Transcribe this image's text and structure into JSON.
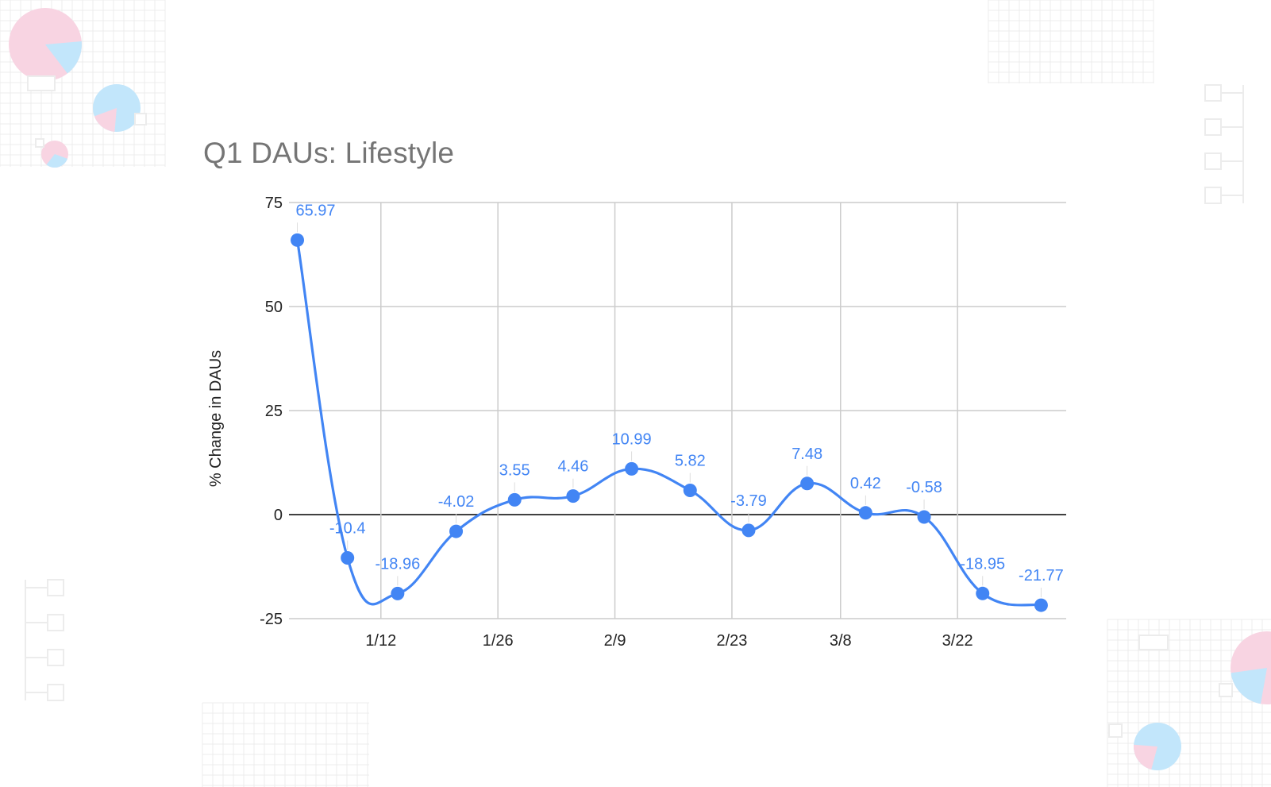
{
  "colors": {
    "series": "#4285f4",
    "label": "#4285f4",
    "grid": "#cccccc",
    "zero_line": "#000000",
    "title": "#757575",
    "deco_pink": "#f8d4e2",
    "deco_blue": "#c2e6fb",
    "deco_grid": "#ececec"
  },
  "chart_data": {
    "type": "line",
    "title": "Q1 DAUs: Lifestyle",
    "xlabel": "",
    "ylabel": "% Change in DAUs",
    "ylim": [
      -25,
      75
    ],
    "yticks": [
      "75",
      "50",
      "25",
      "0",
      "-25"
    ],
    "ytick_values": [
      75,
      50,
      25,
      0,
      -25
    ],
    "xlim": [
      "2021-01-01",
      "2021-04-04"
    ],
    "xticks": [
      {
        "label": "1/12",
        "date": "2021-01-12"
      },
      {
        "label": "1/26",
        "date": "2021-01-26"
      },
      {
        "label": "2/9",
        "date": "2021-02-09"
      },
      {
        "label": "2/23",
        "date": "2021-02-23"
      },
      {
        "label": "3/8",
        "date": "2021-03-08"
      },
      {
        "label": "3/22",
        "date": "2021-03-22"
      }
    ],
    "grid": true,
    "smooth": true,
    "series": [
      {
        "points": [
          {
            "x": "2021-01-02",
            "y": 65.97,
            "label": "65.97"
          },
          {
            "x": "2021-01-08",
            "y": -10.4,
            "label": "-10.4"
          },
          {
            "x": "2021-01-14",
            "y": -18.96,
            "label": "-18.96"
          },
          {
            "x": "2021-01-21",
            "y": -4.02,
            "label": "-4.02"
          },
          {
            "x": "2021-01-28",
            "y": 3.55,
            "label": "3.55"
          },
          {
            "x": "2021-02-04",
            "y": 4.46,
            "label": "4.46"
          },
          {
            "x": "2021-02-11",
            "y": 10.99,
            "label": "10.99"
          },
          {
            "x": "2021-02-18",
            "y": 5.82,
            "label": "5.82"
          },
          {
            "x": "2021-02-25",
            "y": -3.79,
            "label": "-3.79"
          },
          {
            "x": "2021-03-04",
            "y": 7.48,
            "label": "7.48"
          },
          {
            "x": "2021-03-11",
            "y": 0.42,
            "label": "0.42"
          },
          {
            "x": "2021-03-18",
            "y": -0.58,
            "label": "-0.58"
          },
          {
            "x": "2021-03-25",
            "y": -18.95,
            "label": "-18.95"
          },
          {
            "x": "2021-04-01",
            "y": -21.77,
            "label": "-21.77"
          }
        ]
      }
    ]
  }
}
